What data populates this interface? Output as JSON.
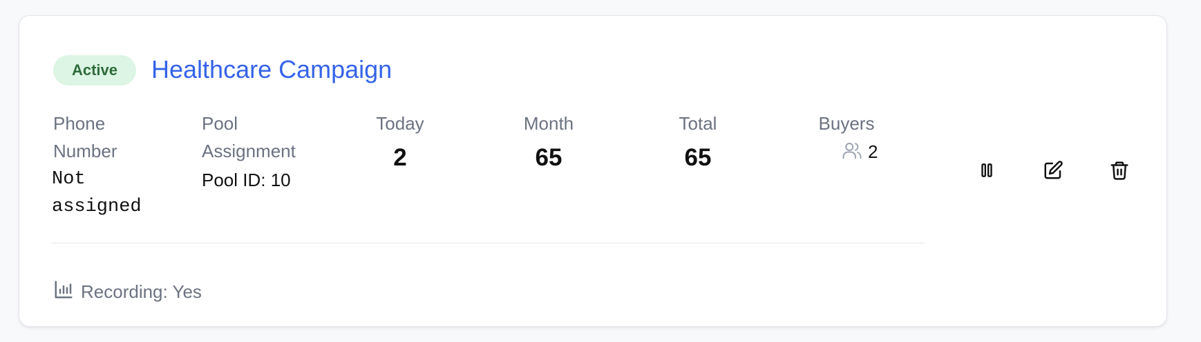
{
  "campaign": {
    "status": "Active",
    "name": "Healthcare Campaign"
  },
  "fields": {
    "phone_label": "Phone Number",
    "phone_value": "Not assigned",
    "pool_label": "Pool Assignment",
    "pool_value": "Pool ID: 10"
  },
  "stats": {
    "today_label": "Today",
    "today_value": "2",
    "month_label": "Month",
    "month_value": "65",
    "total_label": "Total",
    "total_value": "65",
    "buyers_label": "Buyers",
    "buyers_value": "2"
  },
  "actions": {
    "pause_icon": "pause-icon",
    "edit_icon": "edit-icon",
    "delete_icon": "trash-icon"
  },
  "footer": {
    "recording_text": "Recording: Yes",
    "recording_icon": "bar-chart-icon"
  },
  "colors": {
    "accent": "#3563e9",
    "badge_bg": "#dcf5e4",
    "badge_text": "#2f6b3c",
    "muted": "#6b7280"
  }
}
